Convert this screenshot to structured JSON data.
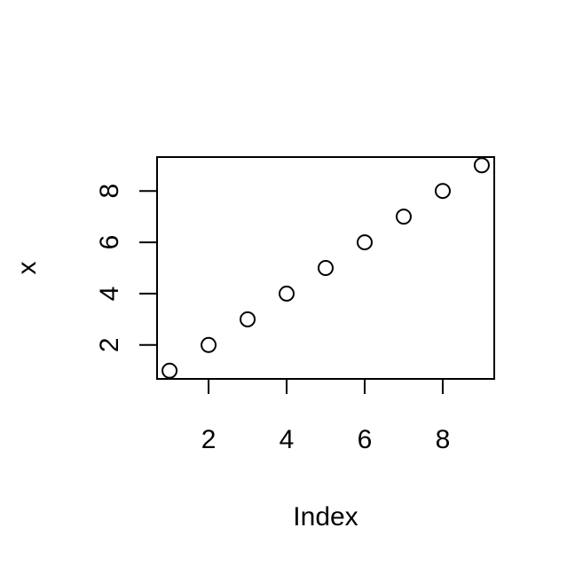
{
  "chart_data": {
    "type": "scatter",
    "title": "",
    "xlabel": "Index",
    "ylabel": "x",
    "x": [
      1,
      2,
      3,
      4,
      5,
      6,
      7,
      8,
      9
    ],
    "y": [
      1,
      2,
      3,
      4,
      5,
      6,
      7,
      8,
      9
    ],
    "xlim": [
      0.68,
      9.32
    ],
    "ylim": [
      0.68,
      9.32
    ],
    "xticks": [
      2,
      4,
      6,
      8
    ],
    "yticks": [
      2,
      4,
      6,
      8
    ],
    "xtick_labels": [
      "2",
      "4",
      "6",
      "8"
    ],
    "ytick_labels": [
      "2",
      "4",
      "6",
      "8"
    ],
    "marker": "open-circle",
    "grid": false,
    "colors": {
      "marker": "#000000",
      "axes": "#000000",
      "background": "#ffffff"
    }
  }
}
